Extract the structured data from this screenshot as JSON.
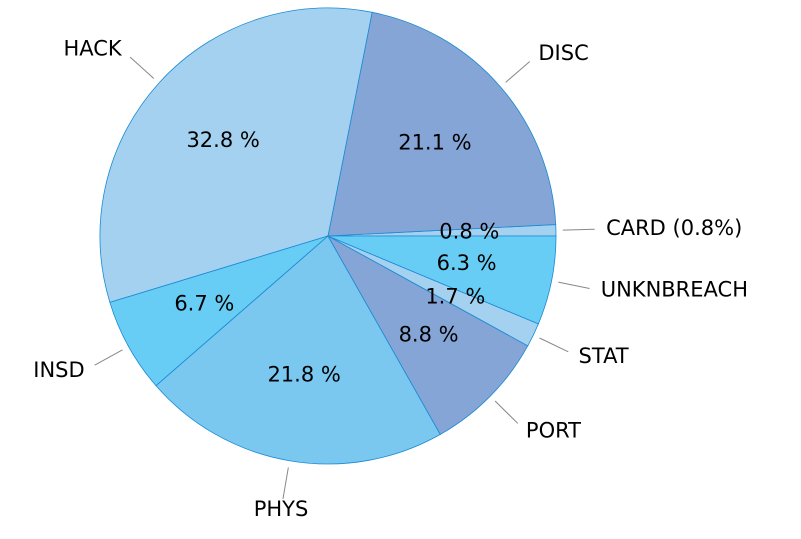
{
  "chart_data": {
    "type": "pie",
    "categories": [
      "CARD (0.8%)",
      "DISC",
      "HACK",
      "INSD",
      "PHYS",
      "PORT",
      "STAT",
      "UNKNBREACH"
    ],
    "values": [
      0.8,
      21.1,
      32.8,
      6.7,
      21.8,
      8.8,
      1.7,
      6.3
    ],
    "value_labels": [
      "0.8 %",
      "21.1 %",
      "32.8 %",
      "6.7 %",
      "21.8 %",
      "8.8 %",
      "1.7 %",
      "6.3 %"
    ],
    "colors": [
      "#a5d1f0",
      "#85a5d6",
      "#a5d1f0",
      "#67cdf5",
      "#7ac7ef",
      "#85a5d6",
      "#a5d1f0",
      "#67cdf5"
    ]
  }
}
